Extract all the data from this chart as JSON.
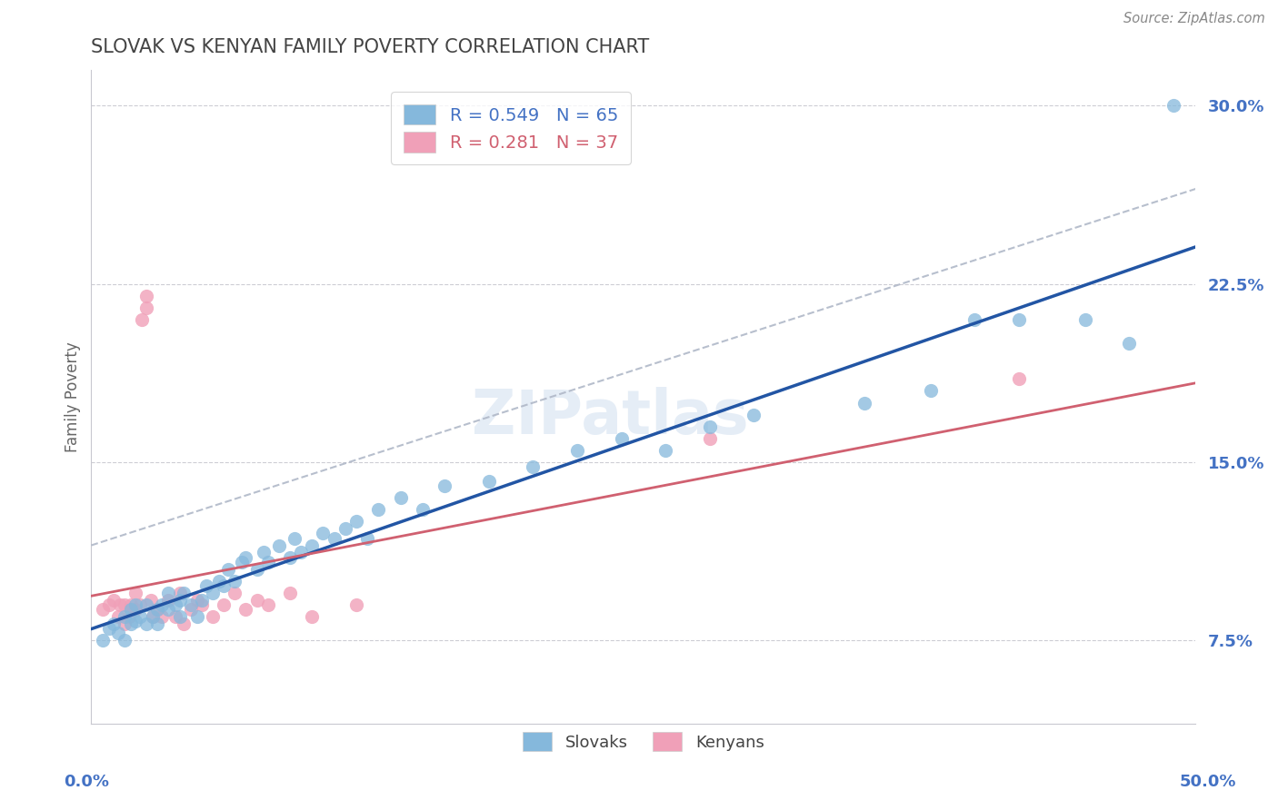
{
  "title": "SLOVAK VS KENYAN FAMILY POVERTY CORRELATION CHART",
  "source": "Source: ZipAtlas.com",
  "ylabel": "Family Poverty",
  "yticks": [
    0.075,
    0.15,
    0.225,
    0.3
  ],
  "ytick_labels": [
    "7.5%",
    "15.0%",
    "22.5%",
    "30.0%"
  ],
  "xlim": [
    0.0,
    0.5
  ],
  "ylim": [
    0.04,
    0.315
  ],
  "slovak_color": "#85b8dc",
  "kenyan_color": "#f0a0b8",
  "slovak_line_color": "#2255a4",
  "kenyan_line_color": "#d06070",
  "gray_dash_color": "#b0b8c8",
  "tick_color": "#4472c4",
  "legend_slovak_r": "0.549",
  "legend_slovak_n": "65",
  "legend_kenyan_r": "0.281",
  "legend_kenyan_n": "37",
  "watermark_text": "ZIPatlas",
  "slovak_x": [
    0.005,
    0.008,
    0.01,
    0.012,
    0.015,
    0.015,
    0.018,
    0.018,
    0.02,
    0.02,
    0.022,
    0.025,
    0.025,
    0.028,
    0.03,
    0.03,
    0.032,
    0.035,
    0.035,
    0.038,
    0.04,
    0.04,
    0.042,
    0.045,
    0.048,
    0.05,
    0.052,
    0.055,
    0.058,
    0.06,
    0.062,
    0.065,
    0.068,
    0.07,
    0.075,
    0.078,
    0.08,
    0.085,
    0.09,
    0.092,
    0.095,
    0.1,
    0.105,
    0.11,
    0.115,
    0.12,
    0.125,
    0.13,
    0.14,
    0.15,
    0.16,
    0.18,
    0.2,
    0.22,
    0.24,
    0.26,
    0.28,
    0.3,
    0.35,
    0.38,
    0.4,
    0.42,
    0.45,
    0.47,
    0.49
  ],
  "slovak_y": [
    0.075,
    0.08,
    0.082,
    0.078,
    0.085,
    0.075,
    0.082,
    0.088,
    0.083,
    0.09,
    0.085,
    0.09,
    0.082,
    0.085,
    0.088,
    0.082,
    0.09,
    0.088,
    0.095,
    0.09,
    0.092,
    0.085,
    0.095,
    0.09,
    0.085,
    0.092,
    0.098,
    0.095,
    0.1,
    0.098,
    0.105,
    0.1,
    0.108,
    0.11,
    0.105,
    0.112,
    0.108,
    0.115,
    0.11,
    0.118,
    0.112,
    0.115,
    0.12,
    0.118,
    0.122,
    0.125,
    0.118,
    0.13,
    0.135,
    0.13,
    0.14,
    0.142,
    0.148,
    0.155,
    0.16,
    0.155,
    0.165,
    0.17,
    0.175,
    0.18,
    0.21,
    0.21,
    0.21,
    0.2,
    0.3
  ],
  "kenyan_x": [
    0.005,
    0.008,
    0.01,
    0.012,
    0.013,
    0.015,
    0.015,
    0.017,
    0.018,
    0.02,
    0.02,
    0.022,
    0.023,
    0.025,
    0.025,
    0.027,
    0.028,
    0.03,
    0.032,
    0.035,
    0.038,
    0.04,
    0.042,
    0.045,
    0.048,
    0.05,
    0.055,
    0.06,
    0.065,
    0.07,
    0.075,
    0.08,
    0.09,
    0.1,
    0.12,
    0.28,
    0.42
  ],
  "kenyan_y": [
    0.088,
    0.09,
    0.092,
    0.085,
    0.09,
    0.082,
    0.09,
    0.085,
    0.09,
    0.088,
    0.095,
    0.09,
    0.21,
    0.22,
    0.215,
    0.092,
    0.085,
    0.088,
    0.085,
    0.092,
    0.085,
    0.095,
    0.082,
    0.088,
    0.092,
    0.09,
    0.085,
    0.09,
    0.095,
    0.088,
    0.092,
    0.09,
    0.095,
    0.085,
    0.09,
    0.16,
    0.185
  ],
  "background_color": "#ffffff",
  "grid_color": "#c8c8d0",
  "title_color": "#444444"
}
